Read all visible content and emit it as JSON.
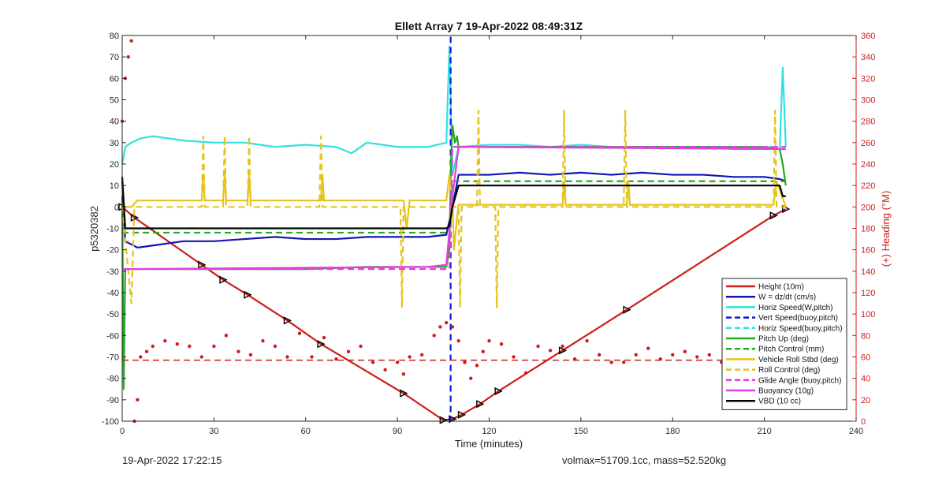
{
  "chart_data": {
    "type": "line",
    "title": "Ellett Array 7 19-Apr-2022 08:49:31Z",
    "xlabel": "Time (minutes)",
    "ylabel_left": "p5320382",
    "ylabel_right": "(+) Heading (°M)",
    "xlim": [
      0,
      240
    ],
    "ylim_left": [
      -100,
      80
    ],
    "ylim_right": [
      0,
      360
    ],
    "x_ticks": [
      "0",
      "30",
      "60",
      "90",
      "120",
      "150",
      "180",
      "210",
      "240"
    ],
    "y_ticks_left": [
      "80",
      "70",
      "60",
      "50",
      "40",
      "30",
      "20",
      "10",
      "0",
      "-10",
      "-20",
      "-30",
      "-40",
      "-50",
      "-60",
      "-70",
      "-80",
      "-90",
      "-100"
    ],
    "y_ticks_right": [
      "360",
      "340",
      "320",
      "300",
      "280",
      "260",
      "240",
      "220",
      "200",
      "180",
      "160",
      "140",
      "120",
      "100",
      "80",
      "60",
      "40",
      "20",
      "0"
    ],
    "legend_position": "bottom-right",
    "legend": [
      {
        "label": "Height (10m)",
        "color": "#cc1f1a",
        "dash": "solid"
      },
      {
        "label": "W = dz/dt (cm/s)",
        "color": "#1414b4",
        "dash": "solid"
      },
      {
        "label": "Horiz Speed(W,pitch)",
        "color": "#33e0e0",
        "dash": "solid"
      },
      {
        "label": "Vert Speed(buoy,pitch)",
        "color": "#1414d8",
        "dash": "dashed"
      },
      {
        "label": "Horiz Speed(buoy,pitch)",
        "color": "#33e0e0",
        "dash": "dashed"
      },
      {
        "label": "Pitch Up (deg)",
        "color": "#22aa22",
        "dash": "solid"
      },
      {
        "label": "Pitch Control (mm)",
        "color": "#22aa22",
        "dash": "dashed"
      },
      {
        "label": "Vehicle Roll Stbd (deg)",
        "color": "#e6c31c",
        "dash": "solid"
      },
      {
        "label": "Roll Control (deg)",
        "color": "#e6c31c",
        "dash": "dashed"
      },
      {
        "label": "Glide Angle (buoy,pitch)",
        "color": "#e040e0",
        "dash": "dashed"
      },
      {
        "label": "Buoyancy (10g)",
        "color": "#e040e0",
        "dash": "solid"
      },
      {
        "label": "VBD (10 cc)",
        "color": "#000000",
        "dash": "solid"
      }
    ],
    "series": [
      {
        "name": "Height (10m)",
        "x": [
          0,
          4,
          26,
          33,
          41,
          54,
          65,
          92,
          105,
          108,
          111,
          117,
          123,
          144,
          165,
          213,
          217
        ],
        "y": [
          0,
          -5,
          -27,
          -34,
          -41,
          -53,
          -64,
          -87,
          -99.5,
          -99,
          -97,
          -92,
          -86,
          -67,
          -48,
          -4,
          -1
        ]
      },
      {
        "name": "W = dz/dt (cm/s)",
        "x": [
          0,
          1,
          5,
          10,
          20,
          30,
          40,
          50,
          60,
          70,
          80,
          90,
          100,
          106,
          108,
          110,
          120,
          130,
          140,
          150,
          160,
          170,
          180,
          190,
          200,
          210,
          215,
          217
        ],
        "y": [
          12,
          -16,
          -19,
          -18,
          -16,
          -16,
          -15,
          -14,
          -15,
          -15,
          -14,
          -14,
          -14,
          -13,
          0,
          15,
          15,
          16,
          15,
          16,
          15,
          16,
          15,
          15,
          14,
          14,
          13,
          12
        ]
      },
      {
        "name": "Horiz Speed(W,pitch)",
        "x": [
          0,
          1,
          3,
          6,
          10,
          20,
          30,
          40,
          50,
          60,
          70,
          75,
          80,
          90,
          100,
          106,
          107,
          108,
          110,
          120,
          130,
          140,
          150,
          160,
          170,
          180,
          190,
          200,
          210,
          215,
          216,
          217
        ],
        "y": [
          20,
          28,
          30,
          32,
          33,
          31,
          30,
          30,
          28,
          29,
          28,
          25,
          30,
          28,
          28,
          30,
          75,
          15,
          28,
          29,
          29,
          28,
          29,
          28,
          28,
          28,
          28,
          27,
          27,
          27,
          65,
          28
        ]
      },
      {
        "name": "Vert Speed(buoy,pitch)",
        "x": [
          107,
          107.4,
          107.4,
          107.8
        ],
        "y": [
          -100,
          -100,
          80,
          80
        ]
      },
      {
        "name": "Horiz Speed(buoy,pitch)",
        "x": [
          108,
          217
        ],
        "y": [
          28,
          28
        ]
      },
      {
        "name": "Pitch Up (deg)",
        "x": [
          0,
          0.5,
          1,
          5,
          20,
          40,
          60,
          80,
          100,
          106,
          107,
          107.5,
          108,
          108.8,
          109.5,
          110,
          120,
          150,
          180,
          210,
          215,
          216,
          217
        ],
        "y": [
          5,
          -85,
          -29,
          -29,
          -29,
          -29,
          -29,
          -28,
          -28,
          -28,
          -20,
          20,
          38,
          30,
          33,
          28,
          28,
          28,
          28,
          28,
          27,
          20,
          10
        ]
      },
      {
        "name": "Pitch Control (mm)",
        "x": [
          0,
          107,
          108,
          217
        ],
        "y": [
          -12,
          -12,
          12,
          12
        ]
      },
      {
        "name": "Vehicle Roll Stbd (deg)",
        "x": [
          0,
          3,
          5,
          26,
          26.5,
          27,
          33,
          33.5,
          34,
          41,
          41.5,
          42,
          54,
          65,
          65.5,
          66,
          92,
          93,
          94,
          106,
          107,
          108,
          108.5,
          109.5,
          110,
          144,
          144.5,
          145,
          165,
          165.5,
          166,
          213,
          214,
          217
        ],
        "y": [
          0,
          0,
          3,
          3,
          15,
          3,
          3,
          15,
          3,
          3,
          15,
          3,
          3,
          3,
          15,
          3,
          3,
          -10,
          3,
          3,
          15,
          2,
          -20,
          -5,
          1,
          1,
          12,
          1,
          1,
          12,
          1,
          1,
          12,
          0
        ]
      },
      {
        "name": "Roll Control (deg)",
        "x": [
          0,
          3,
          4,
          5,
          26,
          26.5,
          27,
          33,
          33.5,
          34,
          41,
          41.5,
          42,
          64.5,
          65,
          65.5,
          91,
          91.5,
          92,
          106,
          110,
          110.5,
          111,
          116,
          116.5,
          117,
          122,
          122.5,
          123,
          144,
          144.5,
          145,
          164,
          164.5,
          165,
          213,
          213.5,
          214,
          217
        ],
        "y": [
          0,
          -45,
          0,
          0,
          0,
          33,
          0,
          0,
          33,
          0,
          0,
          33,
          0,
          0,
          33,
          0,
          0,
          -47,
          0,
          0,
          0,
          -47,
          0,
          0,
          45,
          0,
          0,
          -47,
          0,
          0,
          45,
          0,
          0,
          45,
          0,
          0,
          45,
          0,
          0
        ]
      },
      {
        "name": "Glide Angle (buoy,pitch)",
        "x": [
          0,
          107,
          108,
          217
        ],
        "y": [
          -29,
          -29,
          28,
          28
        ]
      },
      {
        "name": "Buoyancy (10g)",
        "x": [
          0,
          100,
          106,
          108,
          110,
          217
        ],
        "y": [
          -29,
          -28,
          -27,
          5,
          28,
          27
        ]
      },
      {
        "name": "VBD (10 cc)",
        "x": [
          0,
          1,
          106,
          107,
          108,
          110,
          215,
          216,
          217
        ],
        "y": [
          14,
          -10,
          -10,
          -9,
          0,
          10,
          10,
          5,
          5
        ]
      },
      {
        "name": "Heading (dots)",
        "axis": "right",
        "x": [
          0,
          1,
          2,
          3,
          4,
          5,
          6,
          8,
          10,
          14,
          18,
          22,
          26,
          30,
          34,
          38,
          42,
          46,
          50,
          54,
          58,
          62,
          66,
          70,
          74,
          78,
          82,
          86,
          90,
          92,
          94,
          98,
          102,
          104,
          106,
          108,
          110,
          112,
          114,
          116,
          118,
          120,
          124,
          128,
          132,
          136,
          140,
          144,
          148,
          152,
          156,
          160,
          164,
          168,
          172,
          176,
          180,
          184,
          188,
          192,
          196,
          200,
          204,
          208,
          212,
          215,
          217
        ],
        "y": [
          280,
          320,
          340,
          355,
          0,
          20,
          60,
          65,
          70,
          75,
          72,
          70,
          60,
          70,
          80,
          65,
          62,
          75,
          70,
          60,
          82,
          60,
          78,
          58,
          65,
          70,
          55,
          48,
          55,
          44,
          60,
          62,
          80,
          88,
          92,
          88,
          75,
          55,
          40,
          52,
          65,
          75,
          72,
          60,
          45,
          70,
          66,
          70,
          58,
          75,
          62,
          55,
          55,
          62,
          68,
          58,
          62,
          65,
          60,
          62,
          55,
          62,
          52,
          58,
          48,
          60,
          55
        ]
      },
      {
        "name": "Heading Target (dashed)",
        "axis": "right",
        "x": [
          0,
          217
        ],
        "y": [
          57,
          57
        ]
      }
    ]
  },
  "footer": {
    "timestamp": "19-Apr-2022 17:22:15",
    "summary": "volmax=51709.1cc, mass=52.520kg"
  }
}
